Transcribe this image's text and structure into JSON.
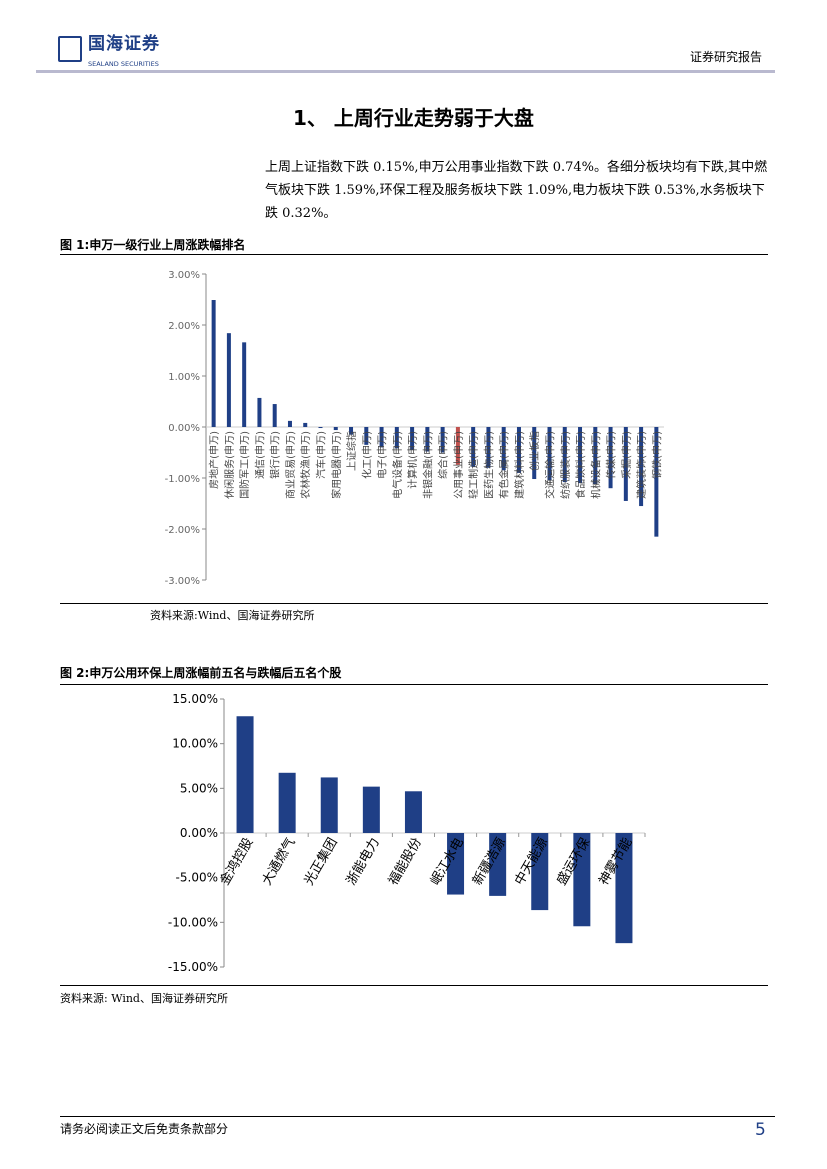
{
  "header": {
    "logo_cn": "国海证券",
    "logo_en": "SEALAND SECURITIES",
    "doc_type": "证券研究报告"
  },
  "section_title": "1、 上周行业走势弱于大盘",
  "paragraph": "上周上证指数下跌 0.15%,申万公用事业指数下跌 0.74%。各细分板块均有下跌,其中燃气板块下跌 1.59%,环保工程及服务板块下跌 1.09%,电力板块下跌 0.53%,水务板块下跌 0.32%。",
  "figure1": {
    "title": "图 1:申万一级行业上周涨跌幅排名",
    "source": "资料来源:Wind、国海证券研究所"
  },
  "figure2": {
    "title": "图 2:申万公用环保上周涨幅前五名与跌幅后五名个股",
    "source": "资料来源:  Wind、国海证券研究所"
  },
  "footer": {
    "disclaimer": "请务必阅读正文后免责条款部分",
    "page": "5"
  },
  "colors": {
    "bar": "#1f3f86",
    "highlight": "#c0504d",
    "brand": "#1f3f86"
  },
  "chart_data": [
    {
      "type": "bar",
      "title": "",
      "ylim": [
        -3,
        3
      ],
      "yticks": [
        "3.00%",
        "2.00%",
        "1.00%",
        "0.00%",
        "-1.00%",
        "-2.00%",
        "-3.00%"
      ],
      "ytick_values": [
        3,
        2,
        1,
        0,
        -1,
        -2,
        -3
      ],
      "unit": "%",
      "highlight": "公用事业(申万)",
      "categories": [
        "房地产(申万)",
        "休闲服务(申万)",
        "国防军工(申万)",
        "通信(申万)",
        "银行(申万)",
        "商业贸易(申万)",
        "农林牧渔(申万)",
        "汽车(申万)",
        "家用电器(申万)",
        "上证综指",
        "化工(申万)",
        "电子(申万)",
        "电气设备(申万)",
        "计算机(申万)",
        "非银金融(申万)",
        "综合(申万)",
        "公用事业(申万)",
        "轻工制造(申万)",
        "医药生物(申万)",
        "有色金属(申万)",
        "建筑材料(申万)",
        "创业板指",
        "交通运输(申万)",
        "纺织服装(申万)",
        "食品饮料(申万)",
        "机械设备(申万)",
        "传媒(申万)",
        "采掘(申万)",
        "建筑装饰(申万)",
        "钢铁(申万)"
      ],
      "values": [
        2.49,
        1.84,
        1.66,
        0.57,
        0.45,
        0.12,
        0.08,
        -0.02,
        -0.06,
        -0.15,
        -0.35,
        -0.4,
        -0.42,
        -0.45,
        -0.48,
        -0.5,
        -0.74,
        -0.78,
        -0.8,
        -0.85,
        -0.9,
        -1.02,
        -1.05,
        -1.08,
        -1.1,
        -1.12,
        -1.2,
        -1.45,
        -1.55,
        -2.15
      ]
    },
    {
      "type": "bar",
      "title": "",
      "ylim": [
        -15,
        15
      ],
      "yticks": [
        "15.00%",
        "10.00%",
        "5.00%",
        "0.00%",
        "-5.00%",
        "-10.00%",
        "-15.00%"
      ],
      "ytick_values": [
        15,
        10,
        5,
        0,
        -5,
        -10,
        -15
      ],
      "unit": "%",
      "categories": [
        "金鸿控股",
        "大通燃气",
        "光正集团",
        "浙能电力",
        "福能股份",
        "岷江水电",
        "新疆浩源",
        "中天能源",
        "盛运环保",
        "神雾节能"
      ],
      "values": [
        13.07,
        6.74,
        6.22,
        5.19,
        4.67,
        -6.89,
        -7.04,
        -8.63,
        -10.44,
        -12.33
      ]
    }
  ]
}
